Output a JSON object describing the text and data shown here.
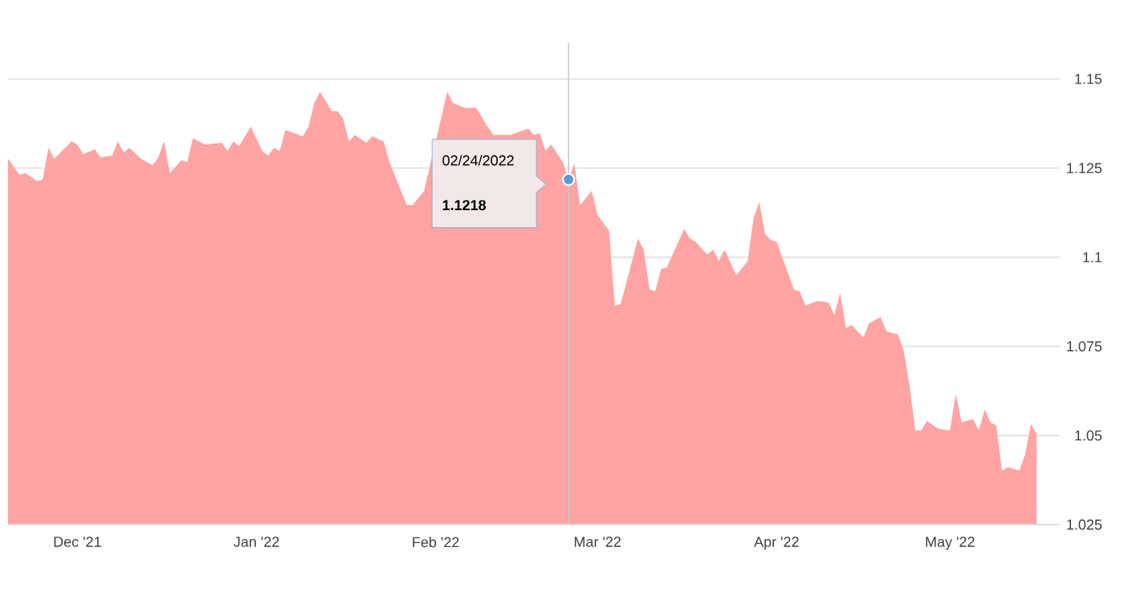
{
  "chart_data": {
    "type": "area",
    "color": "#ffa3a3",
    "x": [
      "2021-11-19",
      "2021-11-21",
      "2021-11-22",
      "2021-11-24",
      "2021-11-25",
      "2021-11-26",
      "2021-11-27",
      "2021-11-30",
      "2021-12-01",
      "2021-12-02",
      "2021-12-04",
      "2021-12-05",
      "2021-12-07",
      "2021-12-08",
      "2021-12-09",
      "2021-12-10",
      "2021-12-12",
      "2021-12-14",
      "2021-12-15",
      "2021-12-16",
      "2021-12-17",
      "2021-12-19",
      "2021-12-20",
      "2021-12-21",
      "2021-12-23",
      "2021-12-26",
      "2021-12-27",
      "2021-12-28",
      "2021-12-29",
      "2021-12-31",
      "2022-01-02",
      "2022-01-03",
      "2022-01-04",
      "2022-01-05",
      "2022-01-06",
      "2022-01-09",
      "2022-01-10",
      "2022-01-11",
      "2022-01-12",
      "2022-01-14",
      "2022-01-15",
      "2022-01-16",
      "2022-01-17",
      "2022-01-18",
      "2022-01-20",
      "2022-01-21",
      "2022-01-23",
      "2022-01-24",
      "2022-01-27",
      "2022-01-28",
      "2022-01-30",
      "2022-02-03",
      "2022-02-04",
      "2022-02-06",
      "2022-02-08",
      "2022-02-10",
      "2022-02-11",
      "2022-02-14",
      "2022-02-17",
      "2022-02-18",
      "2022-02-19",
      "2022-02-20",
      "2022-02-21",
      "2022-02-23",
      "2022-02-24",
      "2022-02-25",
      "2022-02-26",
      "2022-02-28",
      "2022-03-01",
      "2022-03-03",
      "2022-03-04",
      "2022-03-05",
      "2022-03-08",
      "2022-03-09",
      "2022-03-10",
      "2022-03-11",
      "2022-03-12",
      "2022-03-13",
      "2022-03-15",
      "2022-03-16",
      "2022-03-17",
      "2022-03-18",
      "2022-03-20",
      "2022-03-21",
      "2022-03-22",
      "2022-03-23",
      "2022-03-25",
      "2022-03-27",
      "2022-03-28",
      "2022-03-29",
      "2022-03-30",
      "2022-03-31",
      "2022-04-01",
      "2022-04-04",
      "2022-04-05",
      "2022-04-06",
      "2022-04-08",
      "2022-04-10",
      "2022-04-11",
      "2022-04-12",
      "2022-04-13",
      "2022-04-14",
      "2022-04-16",
      "2022-04-17",
      "2022-04-19",
      "2022-04-20",
      "2022-04-22",
      "2022-04-23",
      "2022-04-24",
      "2022-04-25",
      "2022-04-26",
      "2022-04-27",
      "2022-04-29",
      "2022-05-01",
      "2022-05-02",
      "2022-05-03",
      "2022-05-05",
      "2022-05-06",
      "2022-05-07",
      "2022-05-08",
      "2022-05-09",
      "2022-05-10",
      "2022-05-11",
      "2022-05-13",
      "2022-05-14",
      "2022-05-15",
      "2022-05-16"
    ],
    "values": [
      1.1276,
      1.1231,
      1.1236,
      1.1213,
      1.1218,
      1.1307,
      1.1276,
      1.1325,
      1.1316,
      1.1289,
      1.1303,
      1.128,
      1.1285,
      1.1325,
      1.1294,
      1.1307,
      1.1276,
      1.1258,
      1.128,
      1.1325,
      1.1236,
      1.1272,
      1.1267,
      1.1334,
      1.1316,
      1.1321,
      1.1298,
      1.1325,
      1.1312,
      1.1366,
      1.1298,
      1.1285,
      1.1307,
      1.1298,
      1.1357,
      1.1339,
      1.1366,
      1.1433,
      1.1464,
      1.141,
      1.141,
      1.1388,
      1.1325,
      1.1343,
      1.1321,
      1.1339,
      1.1325,
      1.1267,
      1.1146,
      1.1146,
      1.1186,
      1.1464,
      1.1433,
      1.1419,
      1.1419,
      1.1366,
      1.1343,
      1.1343,
      1.1361,
      1.1343,
      1.1348,
      1.1298,
      1.1316,
      1.1267,
      1.1218,
      1.1263,
      1.1146,
      1.1186,
      1.1119,
      1.1074,
      1.0864,
      1.0868,
      1.1052,
      1.1021,
      1.0909,
      1.0904,
      1.0967,
      1.0971,
      1.1043,
      1.1079,
      1.1052,
      1.1043,
      1.1007,
      1.1021,
      1.0989,
      1.1021,
      1.0949,
      1.0989,
      1.111,
      1.1155,
      1.1065,
      1.1048,
      1.1043,
      1.0909,
      1.0904,
      1.0864,
      1.0877,
      1.0873,
      1.0837,
      1.09,
      1.0801,
      1.081,
      1.0774,
      1.0815,
      1.0832,
      1.0792,
      1.0783,
      1.0738,
      1.064,
      1.0514,
      1.0514,
      1.0541,
      1.0519,
      1.0514,
      1.0617,
      1.0537,
      1.0546,
      1.0514,
      1.0573,
      1.0537,
      1.0528,
      1.0402,
      1.0411,
      1.0402,
      1.0447,
      1.0532,
      1.0505
    ],
    "xlim": [
      "2021-11-19",
      "2022-05-20"
    ],
    "xticks": [
      {
        "value": "2021-12-01",
        "label": "Dec '21"
      },
      {
        "value": "2022-01-01",
        "label": "Jan '22"
      },
      {
        "value": "2022-02-01",
        "label": "Feb '22"
      },
      {
        "value": "2022-03-01",
        "label": "Mar '22"
      },
      {
        "value": "2022-04-01",
        "label": "Apr '22"
      },
      {
        "value": "2022-05-01",
        "label": "May '22"
      }
    ],
    "ylim": [
      1.025,
      1.16
    ],
    "yticks": [
      1.025,
      1.05,
      1.075,
      1.1,
      1.125,
      1.15
    ],
    "grid": "y",
    "ref_lines": [
      {
        "axis": "x",
        "value": "2022-02-24",
        "color": "#c8c8c8"
      }
    ],
    "annotations": [
      "02/24/2022",
      "1.1218"
    ]
  }
}
